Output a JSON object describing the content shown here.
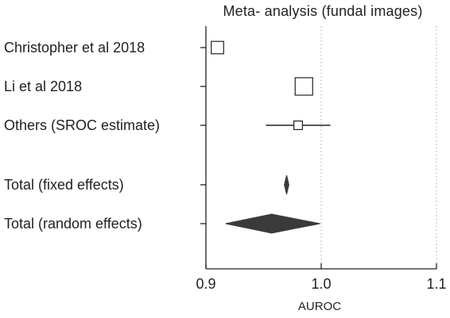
{
  "chart_data": {
    "type": "forest",
    "title": "Meta- analysis (fundal images)",
    "xlabel": "AUROC",
    "xlim": [
      0.9,
      1.1
    ],
    "xticks": [
      0.9,
      1.0,
      1.1
    ],
    "xtick_labels": [
      "0.9",
      "1.0",
      "1.1"
    ],
    "grid": "vertical dotted",
    "rows": [
      {
        "label": "Christopher et al 2018",
        "kind": "square",
        "estimate": 0.91,
        "weight": 0.6
      },
      {
        "label": "Li et al 2018",
        "kind": "square",
        "estimate": 0.985,
        "weight": 1.0
      },
      {
        "label": "Others (SROC estimate)",
        "kind": "square_ci",
        "estimate": 0.98,
        "ci": [
          0.952,
          1.008
        ],
        "weight": 0.3
      },
      {
        "label": "Total (fixed effects)",
        "kind": "diamond",
        "estimate": 0.97,
        "ci": [
          0.968,
          0.972
        ]
      },
      {
        "label": "Total (random effects)",
        "kind": "diamond",
        "estimate": 0.957,
        "ci": [
          0.917,
          0.999
        ]
      }
    ]
  }
}
